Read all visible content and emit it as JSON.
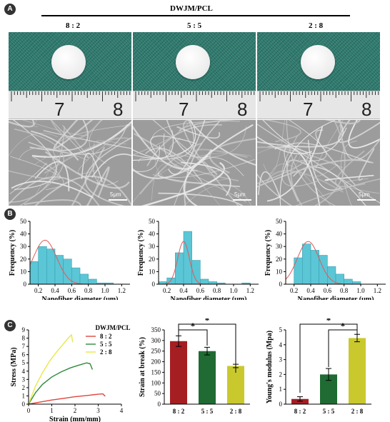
{
  "panels": {
    "a": {
      "letter": "A",
      "header": "DWJM/PCL",
      "ratios": [
        "8 : 2",
        "5 : 5",
        "2 : 8"
      ],
      "ruler_numbers": [
        "7",
        "8"
      ],
      "scale_label": "5μm"
    },
    "b": {
      "letter": "B",
      "y_label": "Frequency (%)",
      "x_label": "Nanofiber diameter (μm)",
      "y_ticks": [
        "0",
        "10",
        "20",
        "30",
        "40",
        "50"
      ],
      "x_ticks": [
        "0.2",
        "0.4",
        "0.6",
        "0.8",
        "1.0",
        "1.2"
      ]
    },
    "c": {
      "letter": "C",
      "legend_title": "DWJM/PCL",
      "legend": [
        "8 : 2",
        "5 : 5",
        "2 : 8"
      ],
      "stress_y_label": "Stress (MPa)",
      "stress_x_label": "Strain (mm/mm)",
      "stress_y_ticks": [
        "0",
        "1",
        "2",
        "3",
        "4",
        "5",
        "6",
        "7",
        "8",
        "9"
      ],
      "stress_x_ticks": [
        "0",
        "1",
        "2",
        "3",
        "4"
      ],
      "break_y_label": "Strain at break (%)",
      "break_y_ticks": [
        "0",
        "50",
        "100",
        "150",
        "200",
        "250",
        "300",
        "350"
      ],
      "modulus_y_label": "Young's modulus (Mpa)",
      "modulus_y_ticks": [
        "0",
        "1",
        "2",
        "3",
        "4",
        "5"
      ],
      "categories": [
        "8 : 2",
        "5 : 5",
        "2 : 8"
      ],
      "star": "*"
    }
  },
  "colors": {
    "hist": "#5bc6d6",
    "fit": "#e05a5a",
    "red": "#a51e22",
    "green": "#1f6b33",
    "yellow": "#c9c92e",
    "s_red": "#e0453a",
    "s_green": "#2e8b3a",
    "s_yellow": "#e8e84a"
  },
  "chart_data": [
    {
      "type": "bar",
      "panel": "B-1",
      "categories": [
        "0.1",
        "0.2",
        "0.3",
        "0.4",
        "0.5",
        "0.6",
        "0.7",
        "0.8",
        "0.9",
        "1.0",
        "1.1"
      ],
      "values": [
        18,
        30,
        28,
        23,
        20,
        13,
        8,
        4,
        1,
        1,
        0
      ],
      "xlabel": "Nanofiber diameter (μm)",
      "ylabel": "Frequency (%)",
      "ylim": [
        0,
        50
      ]
    },
    {
      "type": "bar",
      "panel": "B-2",
      "categories": [
        "0.1",
        "0.2",
        "0.3",
        "0.4",
        "0.5",
        "0.6",
        "0.7",
        "0.8",
        "0.9",
        "1.0",
        "1.1"
      ],
      "values": [
        2,
        5,
        25,
        42,
        19,
        4,
        2,
        1,
        0,
        0,
        1
      ],
      "xlabel": "Nanofiber diameter (μm)",
      "ylabel": "Frequency (%)",
      "ylim": [
        0,
        50
      ]
    },
    {
      "type": "bar",
      "panel": "B-3",
      "categories": [
        "0.1",
        "0.2",
        "0.3",
        "0.4",
        "0.5",
        "0.6",
        "0.7",
        "0.8",
        "0.9",
        "1.0",
        "1.1"
      ],
      "values": [
        0,
        21,
        32,
        27,
        23,
        14,
        8,
        4,
        2,
        0,
        0
      ],
      "xlabel": "Nanofiber diameter (μm)",
      "ylabel": "Frequency (%)",
      "ylim": [
        0,
        50
      ]
    },
    {
      "type": "line",
      "panel": "C-1",
      "xlabel": "Strain (mm/mm)",
      "ylabel": "Stress (MPa)",
      "xlim": [
        0,
        4
      ],
      "ylim": [
        0,
        9
      ],
      "series": [
        {
          "name": "8 : 2",
          "x": [
            0,
            0.5,
            1.0,
            1.5,
            2.0,
            2.5,
            3.0,
            3.2,
            3.3
          ],
          "y": [
            0,
            0.25,
            0.5,
            0.7,
            0.9,
            1.05,
            1.2,
            1.25,
            0.95
          ]
        },
        {
          "name": "5 : 5",
          "x": [
            0,
            0.3,
            0.6,
            1.0,
            1.4,
            1.8,
            2.2,
            2.5,
            2.65,
            2.75
          ],
          "y": [
            0,
            1.4,
            2.4,
            3.3,
            3.9,
            4.4,
            4.75,
            5.0,
            4.9,
            4.2
          ]
        },
        {
          "name": "2 : 8",
          "x": [
            0,
            0.3,
            0.6,
            0.9,
            1.2,
            1.5,
            1.7,
            1.85,
            1.9
          ],
          "y": [
            0,
            2.2,
            3.8,
            5.2,
            6.3,
            7.3,
            8.0,
            8.4,
            7.5
          ]
        }
      ]
    },
    {
      "type": "bar",
      "panel": "C-2",
      "categories": [
        "8 : 2",
        "5 : 5",
        "2 : 8"
      ],
      "values": [
        297,
        250,
        180
      ],
      "errors": [
        25,
        18,
        8
      ],
      "ylabel": "Strain at break (%)",
      "ylim": [
        0,
        350
      ]
    },
    {
      "type": "bar",
      "panel": "C-3",
      "categories": [
        "8 : 2",
        "5 : 5",
        "2 : 8"
      ],
      "values": [
        0.35,
        2.0,
        4.45
      ],
      "errors": [
        0.15,
        0.4,
        0.25
      ],
      "ylabel": "Young's modulus (Mpa)",
      "ylim": [
        0,
        5
      ]
    }
  ]
}
